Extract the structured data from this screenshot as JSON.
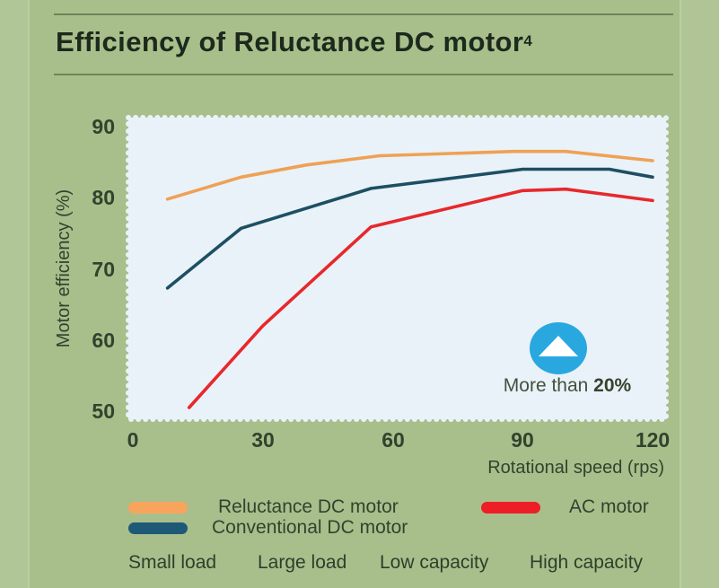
{
  "title": {
    "text": "Efficiency of Reluctance DC motor",
    "superscript": "4"
  },
  "chart_data": {
    "type": "line",
    "title": "Efficiency of Reluctance DC motor⁴",
    "xlabel": "Rotational speed (rps)",
    "ylabel": "Motor efficiency (%)",
    "xlim": [
      0,
      120
    ],
    "ylim": [
      48.5,
      91.5
    ],
    "x_ticks": [
      0,
      30,
      60,
      90,
      120
    ],
    "y_ticks": [
      90,
      80,
      70,
      60,
      50
    ],
    "grid": false,
    "legend_position": "bottom",
    "series": [
      {
        "name": "Reluctance DC motor",
        "color": "#efa155",
        "points": [
          [
            8,
            79.8
          ],
          [
            25,
            82.9
          ],
          [
            40,
            84.6
          ],
          [
            57,
            85.9
          ],
          [
            88,
            86.5
          ],
          [
            100,
            86.5
          ],
          [
            120,
            85.2
          ]
        ]
      },
      {
        "name": "Conventional DC motor",
        "color": "#1d4f63",
        "points": [
          [
            8,
            67.3
          ],
          [
            25,
            75.7
          ],
          [
            55,
            81.3
          ],
          [
            90,
            84.0
          ],
          [
            110,
            84.0
          ],
          [
            120,
            82.9
          ]
        ]
      },
      {
        "name": "AC motor",
        "color": "#e7282c",
        "points": [
          [
            13,
            50.5
          ],
          [
            30,
            62.0
          ],
          [
            55,
            75.9
          ],
          [
            90,
            81.0
          ],
          [
            100,
            81.2
          ],
          [
            120,
            79.6
          ]
        ]
      }
    ],
    "annotation": "More than 20%"
  },
  "axes": {
    "y_label": "Motor efficiency (%)",
    "x_label": "Rotational speed (rps)"
  },
  "annotation": {
    "text_regular": "More than ",
    "text_bold": "20%",
    "icon": "up-triangle-icon",
    "circle_color": "#29a8e0"
  },
  "legend": {
    "items": [
      {
        "label": "Reluctance DC motor",
        "color": "#f9a45c"
      },
      {
        "label": "Conventional DC motor",
        "color": "#1e5978"
      },
      {
        "label": "AC motor",
        "color": "#ee1e26"
      }
    ]
  },
  "footnotes": {
    "labels": [
      "Small load",
      "Large load",
      "Low capacity",
      "High capacity"
    ]
  },
  "colors": {
    "background": "#a8bf8c",
    "plot_background": "#e9f2f8",
    "rule": "#6d8459",
    "title_text": "#1d291c",
    "axis_text": "#33422d",
    "badge_blue": "#29a8e0"
  }
}
